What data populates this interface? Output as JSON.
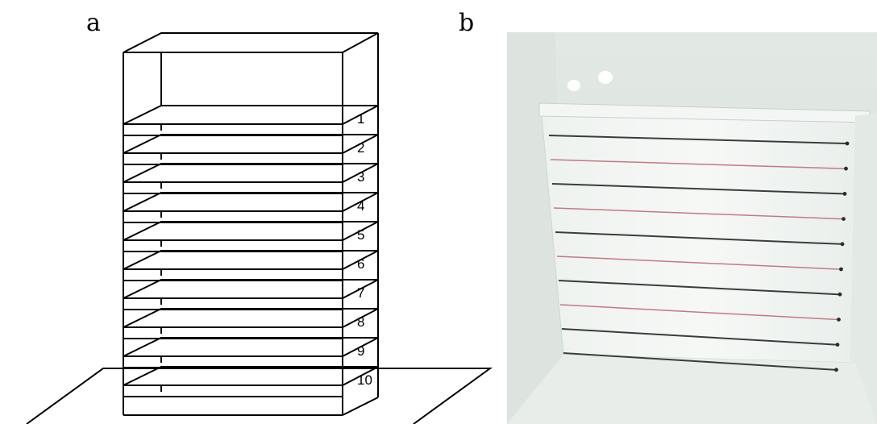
{
  "panels": {
    "a": {
      "label": "a"
    },
    "b": {
      "label": "b"
    }
  },
  "shelf_numbers": [
    "1",
    "2",
    "3",
    "4",
    "5",
    "6",
    "7",
    "8",
    "9",
    "10"
  ],
  "colors": {
    "line": "#000000",
    "photo_background": "#e6ece8",
    "photo_board": "#f2f5f3",
    "photo_wire_dark": "#3a3d3e",
    "photo_wire_red": "#c07a86"
  }
}
